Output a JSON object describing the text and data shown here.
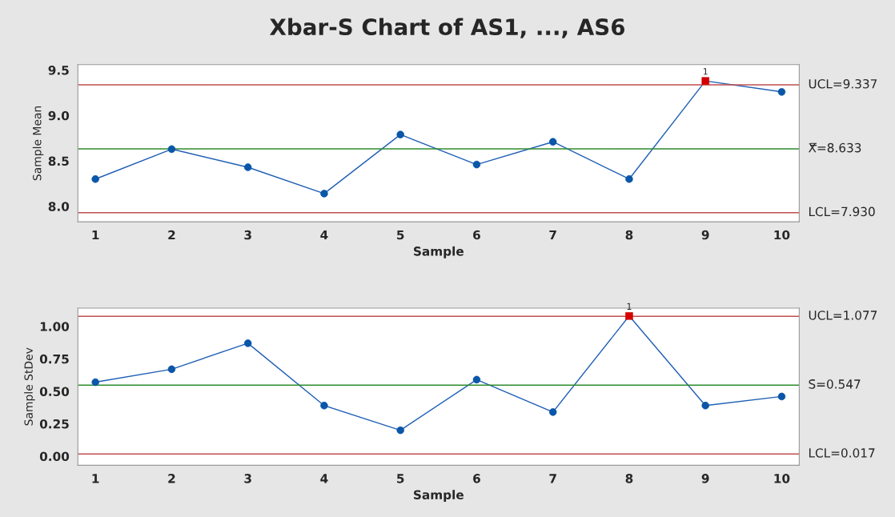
{
  "chart_data": [
    {
      "type": "line",
      "title": "Xbar-S Chart of AS1, ..., AS6",
      "xlabel": "Sample",
      "ylabel": "Sample Mean",
      "x": [
        1,
        2,
        3,
        4,
        5,
        6,
        7,
        8,
        9,
        10
      ],
      "series": [
        {
          "color": "#1f5fb4",
          "marker": "none",
          "values": [
            8.3,
            8.63,
            8.43,
            8.14,
            8.79,
            8.46,
            8.71,
            8.3,
            9.38,
            9.26
          ]
        },
        {
          "type": "scatter",
          "color": "#0a56a8",
          "marker": "circle",
          "values": [
            8.3,
            8.63,
            8.43,
            8.14,
            8.79,
            8.46,
            8.71,
            8.3,
            null,
            9.26
          ]
        },
        {
          "type": "scatter",
          "color": "#d40000",
          "marker": "square",
          "values": [
            null,
            null,
            null,
            null,
            null,
            null,
            null,
            null,
            9.38,
            null
          ]
        }
      ],
      "ref_lines": [
        {
          "axis": "y",
          "value": 9.337,
          "label": "UCL=9.337",
          "color": "#c0504d"
        },
        {
          "axis": "y",
          "value": 8.633,
          "label": "X̿=8.633",
          "color": "#2e8b2e"
        },
        {
          "axis": "y",
          "value": 7.93,
          "label": "LCL=7.930",
          "color": "#c0504d"
        }
      ],
      "annotations": [
        {
          "text": "1",
          "x": 9,
          "y": 9.38
        }
      ],
      "xlim": [
        0.77,
        10.23
      ],
      "xticks": [
        1,
        2,
        3,
        4,
        5,
        6,
        7,
        8,
        9,
        10
      ],
      "ylim": [
        7.83,
        9.56
      ],
      "yticks": [
        {
          "value": 8.0,
          "label": "8.0"
        },
        {
          "value": 8.5,
          "label": "8.5"
        },
        {
          "value": 9.0,
          "label": "9.0"
        },
        {
          "value": 9.5,
          "label": "9.5"
        }
      ],
      "grid": false
    },
    {
      "type": "line",
      "xlabel": "Sample",
      "ylabel": "Sample StDev",
      "x": [
        1,
        2,
        3,
        4,
        5,
        6,
        7,
        8,
        9,
        10
      ],
      "series": [
        {
          "color": "#1f5fb4",
          "marker": "none",
          "values": [
            0.57,
            0.67,
            0.87,
            0.39,
            0.2,
            0.59,
            0.34,
            1.08,
            0.39,
            0.46
          ]
        },
        {
          "type": "scatter",
          "color": "#0a56a8",
          "marker": "circle",
          "values": [
            0.57,
            0.67,
            0.87,
            0.39,
            0.2,
            0.59,
            0.34,
            null,
            0.39,
            0.46
          ]
        },
        {
          "type": "scatter",
          "color": "#d40000",
          "marker": "square",
          "values": [
            null,
            null,
            null,
            null,
            null,
            null,
            null,
            1.08,
            null,
            null
          ]
        }
      ],
      "ref_lines": [
        {
          "axis": "y",
          "value": 1.077,
          "label": "UCL=1.077",
          "color": "#c0504d"
        },
        {
          "axis": "y",
          "value": 0.547,
          "label": "S̄=0.547",
          "color": "#2e8b2e"
        },
        {
          "axis": "y",
          "value": 0.017,
          "label": "LCL=0.017",
          "color": "#c0504d"
        }
      ],
      "annotations": [
        {
          "text": "1",
          "x": 8,
          "y": 1.08
        }
      ],
      "xlim": [
        0.77,
        10.23
      ],
      "xticks": [
        1,
        2,
        3,
        4,
        5,
        6,
        7,
        8,
        9,
        10
      ],
      "ylim": [
        -0.07,
        1.14
      ],
      "yticks": [
        {
          "value": 0.0,
          "label": "0.00"
        },
        {
          "value": 0.25,
          "label": "0.25"
        },
        {
          "value": 0.5,
          "label": "0.50"
        },
        {
          "value": 0.75,
          "label": "0.75"
        },
        {
          "value": 1.0,
          "label": "1.00"
        }
      ],
      "grid": false
    }
  ]
}
